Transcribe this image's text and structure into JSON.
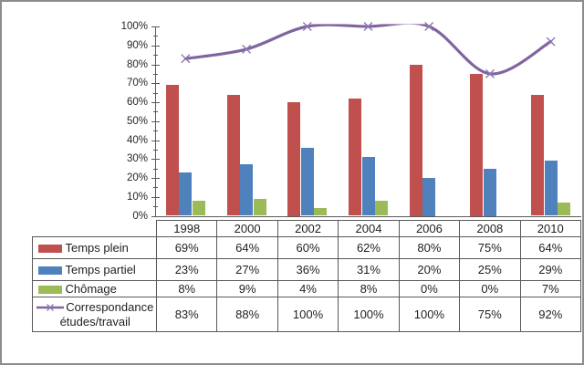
{
  "chart_data": {
    "type": "bar",
    "subtype": "clustered-bars-with-smooth-line-overlay",
    "title": "",
    "xlabel": "",
    "ylabel": "",
    "categories": [
      "1998",
      "2000",
      "2002",
      "2004",
      "2006",
      "2008",
      "2010"
    ],
    "series": [
      {
        "name": "Temps plein",
        "type": "bar",
        "color": "#C0504D",
        "values": [
          69,
          64,
          60,
          62,
          80,
          75,
          64
        ]
      },
      {
        "name": "Temps partiel",
        "type": "bar",
        "color": "#4F81BD",
        "values": [
          23,
          27,
          36,
          31,
          20,
          25,
          29
        ]
      },
      {
        "name": "Chômage",
        "type": "bar",
        "color": "#9BBB59",
        "values": [
          8,
          9,
          4,
          8,
          0,
          0,
          7
        ]
      },
      {
        "name": "Correspondance études/travail",
        "type": "line",
        "smooth": true,
        "marker": "x",
        "color": "#8064A2",
        "marker_color": "#8E79AE",
        "values": [
          83,
          88,
          100,
          100,
          100,
          75,
          92
        ]
      }
    ],
    "value_suffix": "%",
    "ylim": [
      0,
      100
    ],
    "y_ticks": [
      "0%",
      "10%",
      "20%",
      "30%",
      "40%",
      "50%",
      "60%",
      "70%",
      "80%",
      "90%",
      "100%"
    ],
    "y_major_step": 10,
    "y_minor_step": 5,
    "gridlines": false,
    "legend_position": "data-table-keys",
    "axis_color": "#595959",
    "table_border_color": "#595959",
    "text_color": "#1f1f1f",
    "frame_border_color": "#8C8C8C"
  }
}
